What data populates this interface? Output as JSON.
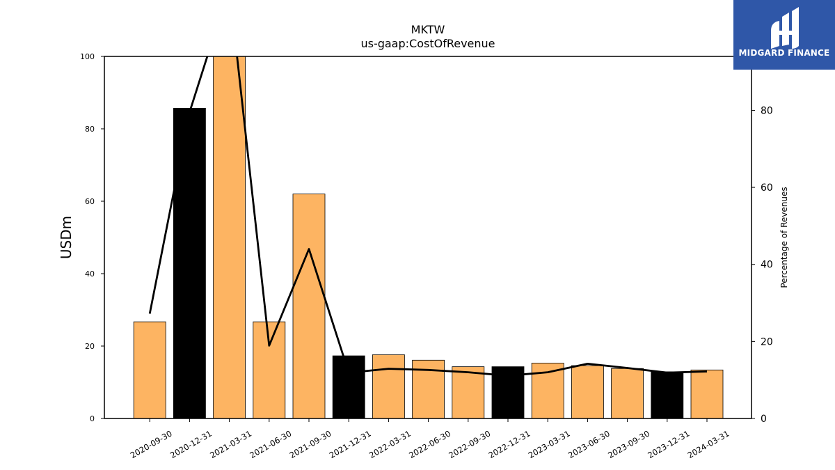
{
  "brand": {
    "name": "MIDGARD FINANCE",
    "bg_color": "#2f57a8"
  },
  "chart_data": {
    "type": "bar",
    "title": "MKTW",
    "subtitle": "us-gaap:CostOfRevenue",
    "ylabel": "USDm",
    "y2label": "Percentage of Revenues",
    "ylim": [
      0,
      100
    ],
    "y2lim": [
      0,
      94
    ],
    "yticks": [
      0,
      20,
      40,
      60,
      80,
      100
    ],
    "y2ticks": [
      0,
      20,
      40,
      60,
      80
    ],
    "categories": [
      "2020-09-30",
      "2020-12-31",
      "2021-03-31",
      "2021-06-30",
      "2021-09-30",
      "2021-12-31",
      "2022-03-31",
      "2022-06-30",
      "2022-09-30",
      "2022-12-31",
      "2023-03-31",
      "2023-06-30",
      "2023-09-30",
      "2023-12-31",
      "2024-03-31"
    ],
    "series": [
      {
        "type": "bar",
        "axis": "left",
        "values": [
          26.7,
          85.7,
          100,
          26.7,
          62,
          17.3,
          17.6,
          16.1,
          14.3,
          14.3,
          15.3,
          14.6,
          13.8,
          12.9,
          13.4
        ],
        "colors": [
          "#fdb462",
          "#000000",
          "#fdb462",
          "#fdb462",
          "#fdb462",
          "#000000",
          "#fdb462",
          "#fdb462",
          "#fdb462",
          "#000000",
          "#fdb462",
          "#fdb462",
          "#fdb462",
          "#000000",
          "#fdb462"
        ]
      },
      {
        "type": "line",
        "axis": "right",
        "color": "#000000",
        "values": [
          27.2,
          79.5,
          112,
          18.9,
          44,
          11.9,
          12.9,
          12.6,
          12.0,
          11.1,
          12.0,
          14.2,
          13.1,
          11.9,
          12.2
        ]
      }
    ],
    "grid": false,
    "legend": "none"
  }
}
